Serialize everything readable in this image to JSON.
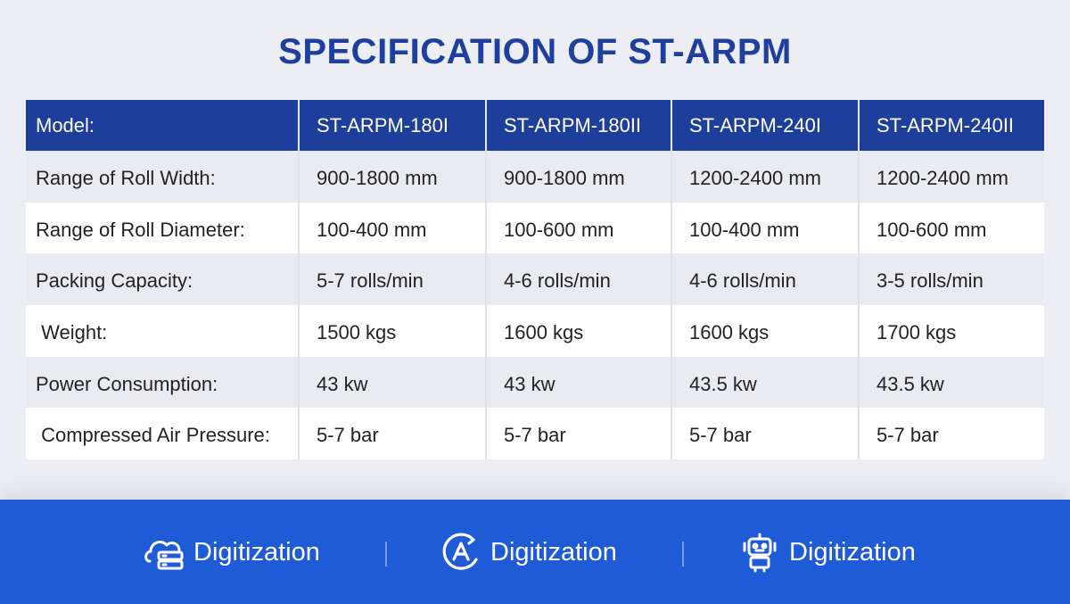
{
  "title": "SPECIFICATION OF ST-ARPM",
  "table": {
    "header": [
      "Model:",
      "ST-ARPM-180I",
      "ST-ARPM-180II",
      "ST-ARPM-240I",
      "ST-ARPM-240II"
    ],
    "rows": [
      [
        "Range of Roll Width:",
        "900-1800 mm",
        "900-1800 mm",
        "1200-2400 mm",
        "1200-2400 mm"
      ],
      [
        "Range of Roll Diameter:",
        "100-400 mm",
        "100-600 mm",
        "100-400 mm",
        "100-600 mm"
      ],
      [
        "Packing Capacity:",
        "5-7 rolls/min",
        "4-6 rolls/min",
        "4-6 rolls/min",
        "3-5 rolls/min"
      ],
      [
        " Weight:",
        "1500 kgs",
        "1600 kgs",
        "1600 kgs",
        "1700 kgs"
      ],
      [
        "Power Consumption:",
        "43 kw",
        "43 kw",
        "43.5 kw",
        "43.5 kw"
      ],
      [
        " Compressed Air Pressure:",
        "5-7 bar",
        "5-7 bar",
        "5-7 bar",
        "5-7 bar"
      ]
    ]
  },
  "footer": {
    "items": [
      {
        "icon": "cloud-server-icon",
        "label": "Digitization"
      },
      {
        "icon": "circle-a-icon",
        "label": "Digitization"
      },
      {
        "icon": "robot-icon",
        "label": "Digitization"
      }
    ],
    "colors": {
      "background": "#1f5bd6",
      "header": "#1d3f9b",
      "title": "#1e3f9e"
    }
  }
}
